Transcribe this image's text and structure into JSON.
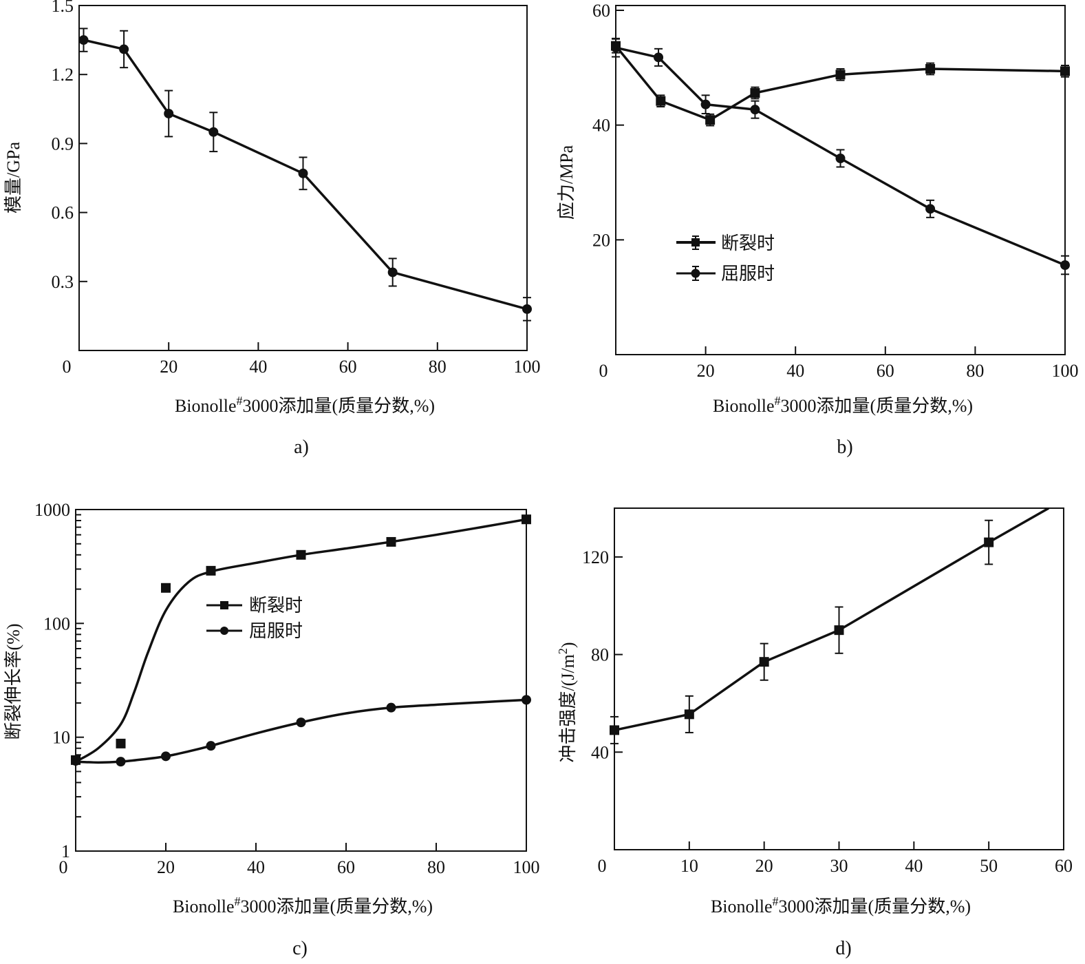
{
  "colors": {
    "ink": "#111111",
    "background": "#ffffff"
  },
  "chart_data": [
    {
      "id": "a",
      "type": "line",
      "caption": "a)",
      "xlabel": "Bionolle#3000添加量(质量分数,%)",
      "xlabel_parts": {
        "pre": "Bionolle",
        "sup": "#",
        "post": "3000添加量(质量分数,%)"
      },
      "ylabel": "模量/GPa",
      "xlim": [
        0,
        100
      ],
      "ylim": [
        0,
        1.5
      ],
      "xticks": [
        0,
        20,
        40,
        60,
        80,
        100
      ],
      "xtick_labels": [
        "0",
        "20",
        "40",
        "60",
        "80",
        "100"
      ],
      "yticks": [
        0.3,
        0.6,
        0.9,
        1.2,
        1.5
      ],
      "ytick_labels": [
        "0.3",
        "0.6",
        "0.9",
        "1.2",
        "1.5"
      ],
      "series": [
        {
          "name": "模量",
          "marker": "circle",
          "x": [
            1,
            10,
            20,
            30,
            50,
            70,
            100
          ],
          "y": [
            1.35,
            1.31,
            1.03,
            0.95,
            0.77,
            0.34,
            0.18
          ],
          "err": [
            0.05,
            0.08,
            0.1,
            0.085,
            0.07,
            0.06,
            0.05
          ]
        }
      ]
    },
    {
      "id": "b",
      "type": "line",
      "caption": "b)",
      "xlabel": "Bionolle#3000添加量(质量分数,%)",
      "xlabel_parts": {
        "pre": "Bionolle",
        "sup": "#",
        "post": "3000添加量(质量分数,%)"
      },
      "ylabel": "应力/MPa",
      "xlim": [
        0,
        100
      ],
      "ylim": [
        0,
        60
      ],
      "xticks": [
        0,
        20,
        40,
        60,
        80,
        100
      ],
      "xtick_labels": [
        "0",
        "20",
        "40",
        "60",
        "80",
        "100"
      ],
      "yticks": [
        20,
        40,
        60
      ],
      "ytick_labels": [
        "20",
        "40",
        "60"
      ],
      "legend": {
        "position": "center-left",
        "entries": [
          "断裂时",
          "屈服时"
        ]
      },
      "series": [
        {
          "name": "断裂时",
          "marker": "square",
          "x": [
            0,
            10,
            21,
            31,
            50,
            70,
            100
          ],
          "y": [
            53.8,
            44.2,
            40.9,
            45.6,
            48.8,
            49.8,
            49.4
          ],
          "err": [
            1.2,
            1.0,
            1.0,
            1.0,
            1.0,
            1.0,
            1.0
          ]
        },
        {
          "name": "屈服时",
          "marker": "circle",
          "x": [
            0,
            9.5,
            20,
            31,
            50,
            70,
            100
          ],
          "y": [
            53.5,
            51.8,
            43.6,
            42.7,
            34.2,
            25.4,
            15.6
          ],
          "err": [
            1.6,
            1.5,
            1.6,
            1.5,
            1.5,
            1.5,
            1.6
          ]
        }
      ]
    },
    {
      "id": "c",
      "type": "line",
      "scale_y": "log",
      "caption": "c)",
      "xlabel": "Bionolle#3000添加量(质量分数,%)",
      "xlabel_parts": {
        "pre": "Bionolle",
        "sup": "#",
        "post": "3000添加量(质量分数,%)"
      },
      "ylabel": "断裂伸长率(%)",
      "xlim": [
        0,
        100
      ],
      "ylim": [
        1,
        1000
      ],
      "xticks": [
        0,
        20,
        40,
        60,
        80,
        100
      ],
      "xtick_labels": [
        "0",
        "20",
        "40",
        "60",
        "80",
        "100"
      ],
      "yticks": [
        1,
        10,
        100,
        1000
      ],
      "ytick_labels": [
        "1",
        "10",
        "100",
        "1000"
      ],
      "legend": {
        "position": "center-left",
        "entries": [
          "断裂时",
          "屈服时"
        ]
      },
      "series": [
        {
          "name": "断裂时",
          "marker": "square",
          "x": [
            0,
            10,
            20,
            30,
            50,
            70,
            100
          ],
          "y": [
            6.3,
            8.8,
            205,
            290,
            400,
            520,
            820
          ],
          "curve": {
            "x": [
              0,
              5,
              10,
              13,
              16,
              20,
              25,
              30,
              40,
              50,
              60,
              70,
              80,
              90,
              100
            ],
            "y": [
              6.1,
              8.0,
              13,
              25,
              55,
              130,
              230,
              285,
              340,
              400,
              455,
              520,
              600,
              700,
              820
            ]
          }
        },
        {
          "name": "屈服时",
          "marker": "circle",
          "x": [
            0,
            10,
            20,
            30,
            50,
            70,
            100
          ],
          "y": [
            6.2,
            6.1,
            6.8,
            8.4,
            13.5,
            18.2,
            21.3
          ],
          "curve": {
            "x": [
              0,
              5,
              10,
              15,
              20,
              25,
              30,
              40,
              50,
              60,
              70,
              80,
              90,
              100
            ],
            "y": [
              6.1,
              6.0,
              6.1,
              6.4,
              6.8,
              7.5,
              8.4,
              10.8,
              13.5,
              16.2,
              18.2,
              19.3,
              20.3,
              21.3
            ]
          }
        }
      ]
    },
    {
      "id": "d",
      "type": "line",
      "caption": "d)",
      "xlabel": "Bionolle#3000添加量(质量分数,%)",
      "xlabel_parts": {
        "pre": "Bionolle",
        "sup": "#",
        "post": "3000添加量(质量分数,%)"
      },
      "ylabel": "冲击强度/(J/m2)",
      "ylabel_parts": {
        "pre": "冲击强度/(J/m",
        "sup": "2",
        "post": ")"
      },
      "xlim": [
        0,
        60
      ],
      "ylim": [
        0,
        140
      ],
      "xticks": [
        0,
        10,
        20,
        30,
        40,
        50,
        60
      ],
      "xtick_labels": [
        "0",
        "10",
        "20",
        "30",
        "40",
        "50",
        "60"
      ],
      "yticks": [
        40,
        80,
        120
      ],
      "ytick_labels": [
        "40",
        "80",
        "120"
      ],
      "series": [
        {
          "name": "冲击强度",
          "marker": "square",
          "x": [
            0,
            10,
            20,
            30,
            50,
            58
          ],
          "y": [
            49,
            55.5,
            77,
            90,
            126,
            140
          ],
          "err": [
            5.5,
            7.5,
            7.5,
            9.5,
            9,
            null
          ],
          "marker_mask": [
            true,
            true,
            true,
            true,
            true,
            false
          ]
        }
      ]
    }
  ]
}
